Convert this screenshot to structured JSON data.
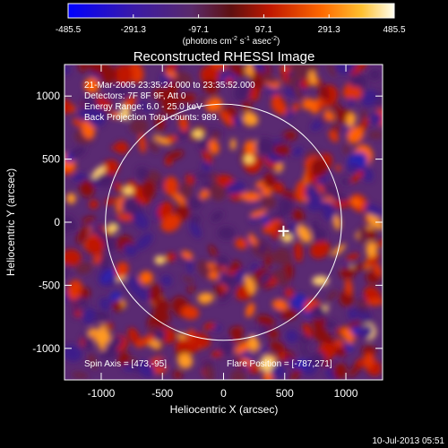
{
  "colorbar": {
    "tick_labels": [
      "-485.5",
      "-291.3",
      "-97.1",
      "97.1",
      "291.3",
      "485.5"
    ],
    "unit_prefix": "(photons cm",
    "unit_exp1": "-2",
    "unit_mid": " s",
    "unit_exp2": "-1",
    "unit_mid2": " asec",
    "unit_exp3": "-2",
    "unit_suffix": ")"
  },
  "chart_data": {
    "type": "heatmap",
    "title": "Reconstructed RHESSI Image",
    "xlabel": "Heliocentric X (arcsec)",
    "ylabel": "Heliocentric Y (arcsec)",
    "xlim": [
      -1300,
      1300
    ],
    "ylim": [
      -1250,
      1250
    ],
    "x_ticks": [
      -1000,
      -500,
      0,
      500,
      1000
    ],
    "y_ticks": [
      -1000,
      -500,
      0,
      500,
      1000
    ],
    "colorscale_range": [
      -485.5,
      485.5
    ],
    "solar_limb_radius_arcsec": 965,
    "source_marker": [
      490,
      -70
    ],
    "info_lines": [
      "21-Mar-2005 23:35:24.000 to 23:35:52.000",
      "Detectors: 7F 8F 9F, Att 0",
      "Energy Range: 6.0 - 25.0 keV",
      "Back Projection   Total counts: 989."
    ],
    "spin_axis": "Spin Axis = [473,-95]",
    "flare_position": "Flare Position = [-787,271]",
    "timestamp": "10-Jul-2013 05:51"
  }
}
